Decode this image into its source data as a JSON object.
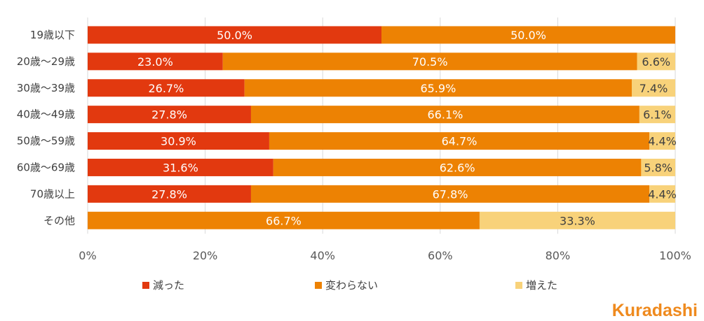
{
  "chart_data": {
    "type": "bar",
    "orientation": "horizontal",
    "stacked": true,
    "title": "",
    "xlabel": "",
    "ylabel": "",
    "xlim": [
      0,
      100
    ],
    "x_ticks": [
      "0%",
      "20%",
      "40%",
      "60%",
      "80%",
      "100%"
    ],
    "grid": true,
    "legend_position": "bottom",
    "categories": [
      "19歳以下",
      "20歳～29歳",
      "30歳～39歳",
      "40歳～49歳",
      "50歳～59歳",
      "60歳～69歳",
      "70歳以上",
      "その他"
    ],
    "series": [
      {
        "name": "減った",
        "color": "#e2390f",
        "label_color": "#ffffff",
        "values": [
          50.0,
          23.0,
          26.7,
          27.8,
          30.9,
          31.6,
          27.8,
          0
        ],
        "labels": [
          "50.0%",
          "23.0%",
          "26.7%",
          "27.8%",
          "30.9%",
          "31.6%",
          "27.8%",
          ""
        ]
      },
      {
        "name": "変わらない",
        "color": "#ed8203",
        "label_color": "#ffffff",
        "values": [
          50.0,
          70.5,
          65.9,
          66.1,
          64.7,
          62.6,
          67.8,
          66.7
        ],
        "labels": [
          "50.0%",
          "70.5%",
          "65.9%",
          "66.1%",
          "64.7%",
          "62.6%",
          "67.8%",
          "66.7%"
        ]
      },
      {
        "name": "増えた",
        "color": "#f8d27a",
        "label_color": "#404040",
        "values": [
          0,
          6.6,
          7.4,
          6.1,
          4.4,
          5.8,
          4.4,
          33.3
        ],
        "labels": [
          "",
          "6.6%",
          "7.4%",
          "6.1%",
          "4.4%",
          "5.8%",
          "4.4%",
          "33.3%"
        ]
      }
    ]
  },
  "logo": {
    "first_letter": "K",
    "rest": "uradashi",
    "color": "#ef8a1e"
  }
}
